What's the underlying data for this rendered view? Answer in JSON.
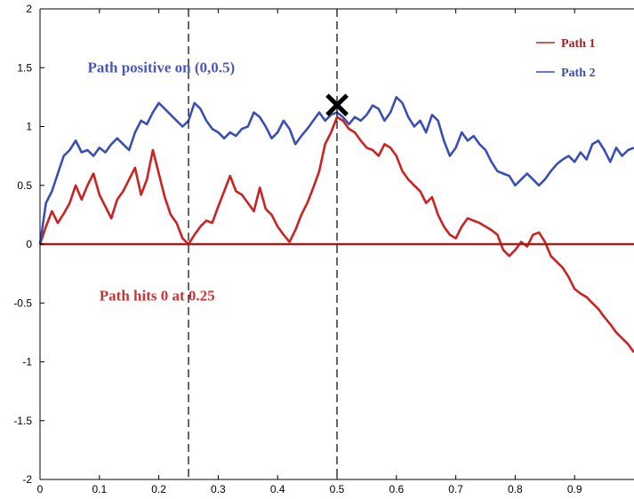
{
  "chart_data": {
    "type": "line",
    "xlim": [
      0,
      1
    ],
    "ylim": [
      -2,
      2
    ],
    "x_ticks": [
      "0",
      "0.1",
      "0.2",
      "0.3",
      "0.4",
      "0.5",
      "0.6",
      "0.7",
      "0.8",
      "0.9"
    ],
    "x_tick_values": [
      0,
      0.1,
      0.2,
      0.3,
      0.4,
      0.5,
      0.6,
      0.7,
      0.8,
      0.9
    ],
    "y_ticks": [
      "2",
      "1.5",
      "1",
      "0.5",
      "0",
      "-0.5",
      "-1",
      "-1.5",
      "-2"
    ],
    "y_tick_values": [
      2,
      1.5,
      1,
      0.5,
      0,
      -0.5,
      -1,
      -1.5,
      -2
    ],
    "grid": false,
    "legend_position": "top-right",
    "series": [
      {
        "name": "Path 1",
        "color": "#cc2222",
        "points": [
          [
            0,
            0
          ],
          [
            0.01,
            0.15
          ],
          [
            0.02,
            0.28
          ],
          [
            0.03,
            0.18
          ],
          [
            0.04,
            0.26
          ],
          [
            0.05,
            0.35
          ],
          [
            0.06,
            0.5
          ],
          [
            0.07,
            0.38
          ],
          [
            0.08,
            0.5
          ],
          [
            0.09,
            0.6
          ],
          [
            0.1,
            0.42
          ],
          [
            0.11,
            0.32
          ],
          [
            0.12,
            0.22
          ],
          [
            0.13,
            0.38
          ],
          [
            0.14,
            0.45
          ],
          [
            0.15,
            0.55
          ],
          [
            0.16,
            0.65
          ],
          [
            0.17,
            0.42
          ],
          [
            0.18,
            0.55
          ],
          [
            0.19,
            0.8
          ],
          [
            0.2,
            0.6
          ],
          [
            0.21,
            0.4
          ],
          [
            0.22,
            0.25
          ],
          [
            0.23,
            0.18
          ],
          [
            0.24,
            0.05
          ],
          [
            0.25,
            0
          ],
          [
            0.26,
            0.08
          ],
          [
            0.27,
            0.15
          ],
          [
            0.28,
            0.2
          ],
          [
            0.29,
            0.18
          ],
          [
            0.3,
            0.32
          ],
          [
            0.31,
            0.45
          ],
          [
            0.32,
            0.58
          ],
          [
            0.33,
            0.45
          ],
          [
            0.34,
            0.42
          ],
          [
            0.35,
            0.35
          ],
          [
            0.36,
            0.28
          ],
          [
            0.37,
            0.48
          ],
          [
            0.38,
            0.3
          ],
          [
            0.39,
            0.25
          ],
          [
            0.4,
            0.15
          ],
          [
            0.41,
            0.08
          ],
          [
            0.42,
            0.02
          ],
          [
            0.43,
            0.12
          ],
          [
            0.44,
            0.25
          ],
          [
            0.45,
            0.35
          ],
          [
            0.46,
            0.48
          ],
          [
            0.47,
            0.62
          ],
          [
            0.48,
            0.85
          ],
          [
            0.49,
            0.95
          ],
          [
            0.5,
            1.08
          ],
          [
            0.51,
            1.05
          ],
          [
            0.52,
            0.98
          ],
          [
            0.53,
            0.95
          ],
          [
            0.54,
            0.88
          ],
          [
            0.55,
            0.82
          ],
          [
            0.56,
            0.8
          ],
          [
            0.57,
            0.75
          ],
          [
            0.58,
            0.85
          ],
          [
            0.59,
            0.82
          ],
          [
            0.6,
            0.75
          ],
          [
            0.61,
            0.62
          ],
          [
            0.62,
            0.55
          ],
          [
            0.63,
            0.5
          ],
          [
            0.64,
            0.45
          ],
          [
            0.65,
            0.35
          ],
          [
            0.66,
            0.4
          ],
          [
            0.67,
            0.25
          ],
          [
            0.68,
            0.15
          ],
          [
            0.69,
            0.08
          ],
          [
            0.7,
            0.05
          ],
          [
            0.71,
            0.15
          ],
          [
            0.72,
            0.22
          ],
          [
            0.73,
            0.2
          ],
          [
            0.74,
            0.18
          ],
          [
            0.75,
            0.15
          ],
          [
            0.76,
            0.12
          ],
          [
            0.77,
            0.08
          ],
          [
            0.78,
            -0.05
          ],
          [
            0.79,
            -0.1
          ],
          [
            0.8,
            -0.05
          ],
          [
            0.81,
            0.02
          ],
          [
            0.82,
            -0.02
          ],
          [
            0.83,
            0.08
          ],
          [
            0.84,
            0.1
          ],
          [
            0.85,
            0.02
          ],
          [
            0.86,
            -0.1
          ],
          [
            0.87,
            -0.15
          ],
          [
            0.88,
            -0.2
          ],
          [
            0.89,
            -0.28
          ],
          [
            0.9,
            -0.38
          ],
          [
            0.91,
            -0.42
          ],
          [
            0.92,
            -0.45
          ],
          [
            0.93,
            -0.5
          ],
          [
            0.94,
            -0.55
          ],
          [
            0.95,
            -0.62
          ],
          [
            0.96,
            -0.68
          ],
          [
            0.97,
            -0.75
          ],
          [
            0.98,
            -0.8
          ],
          [
            0.99,
            -0.85
          ],
          [
            1.0,
            -0.92
          ]
        ]
      },
      {
        "name": "Path 2",
        "color": "#3a4fb5",
        "points": [
          [
            0,
            0
          ],
          [
            0.01,
            0.35
          ],
          [
            0.02,
            0.45
          ],
          [
            0.03,
            0.6
          ],
          [
            0.04,
            0.75
          ],
          [
            0.05,
            0.8
          ],
          [
            0.06,
            0.88
          ],
          [
            0.07,
            0.78
          ],
          [
            0.08,
            0.8
          ],
          [
            0.09,
            0.75
          ],
          [
            0.1,
            0.82
          ],
          [
            0.11,
            0.78
          ],
          [
            0.12,
            0.85
          ],
          [
            0.13,
            0.9
          ],
          [
            0.14,
            0.85
          ],
          [
            0.15,
            0.8
          ],
          [
            0.16,
            0.95
          ],
          [
            0.17,
            1.05
          ],
          [
            0.18,
            1.02
          ],
          [
            0.19,
            1.12
          ],
          [
            0.2,
            1.2
          ],
          [
            0.21,
            1.15
          ],
          [
            0.22,
            1.1
          ],
          [
            0.23,
            1.05
          ],
          [
            0.24,
            1.0
          ],
          [
            0.25,
            1.05
          ],
          [
            0.26,
            1.2
          ],
          [
            0.27,
            1.15
          ],
          [
            0.28,
            1.05
          ],
          [
            0.29,
            0.98
          ],
          [
            0.3,
            0.95
          ],
          [
            0.31,
            0.9
          ],
          [
            0.32,
            0.95
          ],
          [
            0.33,
            0.92
          ],
          [
            0.34,
            0.98
          ],
          [
            0.35,
            1.0
          ],
          [
            0.36,
            1.12
          ],
          [
            0.37,
            1.08
          ],
          [
            0.38,
            1.0
          ],
          [
            0.39,
            0.9
          ],
          [
            0.4,
            0.95
          ],
          [
            0.41,
            1.05
          ],
          [
            0.42,
            0.98
          ],
          [
            0.43,
            0.85
          ],
          [
            0.44,
            0.92
          ],
          [
            0.45,
            0.98
          ],
          [
            0.46,
            1.05
          ],
          [
            0.47,
            1.12
          ],
          [
            0.48,
            1.05
          ],
          [
            0.49,
            1.1
          ],
          [
            0.5,
            1.12
          ],
          [
            0.51,
            1.08
          ],
          [
            0.52,
            1.02
          ],
          [
            0.53,
            1.08
          ],
          [
            0.54,
            1.05
          ],
          [
            0.55,
            1.1
          ],
          [
            0.56,
            1.18
          ],
          [
            0.57,
            1.15
          ],
          [
            0.58,
            1.05
          ],
          [
            0.59,
            1.12
          ],
          [
            0.6,
            1.25
          ],
          [
            0.61,
            1.2
          ],
          [
            0.62,
            1.08
          ],
          [
            0.63,
            1.0
          ],
          [
            0.64,
            1.05
          ],
          [
            0.65,
            0.95
          ],
          [
            0.66,
            1.1
          ],
          [
            0.67,
            1.05
          ],
          [
            0.68,
            0.88
          ],
          [
            0.69,
            0.75
          ],
          [
            0.7,
            0.82
          ],
          [
            0.71,
            0.95
          ],
          [
            0.72,
            0.88
          ],
          [
            0.73,
            0.92
          ],
          [
            0.74,
            0.85
          ],
          [
            0.75,
            0.8
          ],
          [
            0.76,
            0.7
          ],
          [
            0.77,
            0.62
          ],
          [
            0.78,
            0.6
          ],
          [
            0.79,
            0.58
          ],
          [
            0.8,
            0.5
          ],
          [
            0.81,
            0.55
          ],
          [
            0.82,
            0.6
          ],
          [
            0.83,
            0.55
          ],
          [
            0.84,
            0.5
          ],
          [
            0.85,
            0.55
          ],
          [
            0.86,
            0.62
          ],
          [
            0.87,
            0.68
          ],
          [
            0.88,
            0.72
          ],
          [
            0.89,
            0.75
          ],
          [
            0.9,
            0.7
          ],
          [
            0.91,
            0.78
          ],
          [
            0.92,
            0.72
          ],
          [
            0.93,
            0.85
          ],
          [
            0.94,
            0.88
          ],
          [
            0.95,
            0.8
          ],
          [
            0.96,
            0.7
          ],
          [
            0.97,
            0.82
          ],
          [
            0.98,
            0.75
          ],
          [
            0.99,
            0.8
          ],
          [
            1.0,
            0.82
          ]
        ]
      }
    ],
    "reference_lines": {
      "horizontal_y": 0,
      "horizontal_color": "#a02020",
      "vertical_dashed_x": [
        0.25,
        0.5
      ]
    },
    "marker": {
      "x": 0.5,
      "y": 1.17,
      "symbol": "×",
      "color": "#000000"
    },
    "annotations": [
      {
        "text": "Path positive on (0,0.5)",
        "x": 0.08,
        "y": 1.46,
        "color": "#4a59b8"
      },
      {
        "text": "Path hits 0 at 0.25",
        "x": 0.1,
        "y": -0.48,
        "color": "#cc3333"
      }
    ]
  }
}
